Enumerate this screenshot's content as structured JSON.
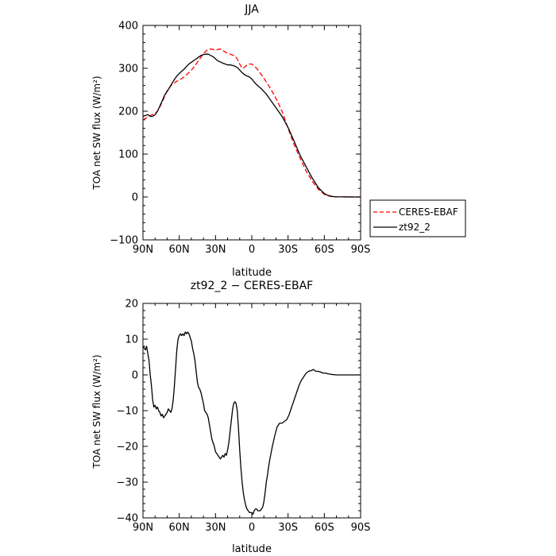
{
  "chart_data": [
    {
      "type": "line",
      "title": "JJA",
      "xlabel": "latitude",
      "ylabel": "TOA net SW flux (W/m²)",
      "xlim": [
        90,
        -90
      ],
      "ylim": [
        -100,
        400
      ],
      "x_ticks": [
        90,
        60,
        30,
        0,
        -30,
        -60,
        -90
      ],
      "x_tick_labels": [
        "90N",
        "60N",
        "30N",
        "0",
        "30S",
        "60S",
        "90S"
      ],
      "y_ticks": [
        -100,
        0,
        100,
        200,
        300,
        400
      ],
      "y_tick_labels": [
        "−100",
        "0",
        "100",
        "200",
        "300",
        "400"
      ],
      "legend_position": "right",
      "series": [
        {
          "name": "CERES-EBAF",
          "color": "#ff0000",
          "dash": "dashed",
          "x": [
            90,
            88,
            86,
            84,
            82,
            80,
            78,
            76,
            74,
            72,
            70,
            68,
            66,
            64,
            62,
            60,
            58,
            56,
            54,
            52,
            50,
            48,
            46,
            44,
            42,
            40,
            38,
            36,
            34,
            32,
            30,
            28,
            26,
            24,
            22,
            20,
            18,
            16,
            14,
            12,
            10,
            8,
            6,
            4,
            2,
            0,
            -2,
            -4,
            -6,
            -8,
            -10,
            -12,
            -15,
            -20,
            -25,
            -30,
            -35,
            -40,
            -45,
            -50,
            -55,
            -60,
            -62,
            -64,
            -66,
            -68,
            -70,
            -75,
            -80,
            -85,
            -90
          ],
          "y": [
            180,
            183,
            187,
            190,
            192,
            195,
            200,
            210,
            222,
            235,
            248,
            256,
            262,
            266,
            270,
            273,
            276,
            280,
            285,
            290,
            296,
            302,
            310,
            318,
            326,
            334,
            340,
            344,
            345,
            344,
            342,
            344,
            345,
            342,
            338,
            335,
            333,
            331,
            329,
            322,
            310,
            300,
            302,
            308,
            310,
            310,
            305,
            300,
            292,
            285,
            277,
            268,
            255,
            230,
            200,
            160,
            122,
            90,
            60,
            37,
            18,
            6,
            4,
            2,
            1,
            0.5,
            0.3,
            0.2,
            0.1,
            0,
            0
          ]
        },
        {
          "name": "zt92_2",
          "color": "#000000",
          "dash": "solid",
          "x": [
            90,
            88,
            86,
            84,
            82,
            80,
            78,
            76,
            74,
            72,
            70,
            68,
            66,
            64,
            62,
            60,
            58,
            56,
            54,
            52,
            50,
            48,
            46,
            44,
            42,
            40,
            38,
            36,
            34,
            32,
            30,
            28,
            26,
            24,
            22,
            20,
            18,
            16,
            14,
            12,
            10,
            8,
            6,
            4,
            2,
            0,
            -2,
            -4,
            -6,
            -8,
            -10,
            -12,
            -15,
            -20,
            -25,
            -30,
            -35,
            -40,
            -45,
            -50,
            -55,
            -60,
            -62,
            -64,
            -66,
            -68,
            -70,
            -75,
            -80,
            -85,
            -90
          ],
          "y": [
            188,
            190,
            192,
            188,
            188,
            192,
            200,
            212,
            225,
            238,
            246,
            255,
            265,
            274,
            282,
            288,
            293,
            298,
            304,
            310,
            314,
            318,
            322,
            326,
            330,
            332,
            333,
            333,
            330,
            327,
            322,
            317,
            315,
            312,
            310,
            308,
            308,
            307,
            305,
            302,
            296,
            290,
            285,
            282,
            280,
            275,
            268,
            262,
            257,
            252,
            246,
            240,
            228,
            208,
            188,
            162,
            130,
            97,
            70,
            44,
            22,
            8,
            5,
            3,
            1.5,
            0.8,
            0.4,
            0.2,
            0.1,
            0,
            0
          ]
        }
      ]
    },
    {
      "type": "line",
      "title": "zt92_2 − CERES-EBAF",
      "xlabel": "latitude",
      "ylabel": "TOA net SW flux (W/m²)",
      "xlim": [
        90,
        -90
      ],
      "ylim": [
        -40,
        20
      ],
      "x_ticks": [
        90,
        60,
        30,
        0,
        -30,
        -60,
        -90
      ],
      "x_tick_labels": [
        "90N",
        "60N",
        "30N",
        "0",
        "30S",
        "60S",
        "90S"
      ],
      "y_ticks": [
        -40,
        -30,
        -20,
        -10,
        0,
        10,
        20
      ],
      "y_tick_labels": [
        "−40",
        "−30",
        "−20",
        "−10",
        "0",
        "10",
        "20"
      ],
      "series": [
        {
          "color": "#000000",
          "dash": "solid",
          "x": [
            90,
            89,
            88,
            87,
            86,
            85,
            84,
            83,
            82,
            81,
            80,
            79,
            78,
            77,
            76,
            75,
            74,
            73,
            72,
            71,
            70,
            69,
            68,
            67,
            66,
            65,
            64,
            63,
            62,
            61,
            60,
            59,
            58,
            57,
            56,
            55,
            54,
            53,
            52,
            51,
            50,
            49,
            48,
            47,
            46,
            45,
            44,
            43,
            42,
            41,
            40,
            39,
            38,
            37,
            36,
            35,
            34,
            33,
            32,
            31,
            30,
            29,
            28,
            27,
            26,
            25,
            24,
            23,
            22,
            21,
            20,
            19,
            18,
            17,
            16,
            15,
            14,
            13,
            12,
            11,
            10,
            9,
            8,
            7,
            6,
            5,
            4,
            3,
            2,
            1,
            0,
            -1,
            -2,
            -3,
            -4,
            -5,
            -6,
            -7,
            -8,
            -9,
            -10,
            -11,
            -12,
            -13,
            -14,
            -15,
            -17,
            -19,
            -21,
            -23,
            -25,
            -27,
            -29,
            -31,
            -33,
            -35,
            -37,
            -39,
            -41,
            -43,
            -45,
            -47,
            -49,
            -51,
            -53,
            -55,
            -57,
            -59,
            -61,
            -63,
            -65,
            -67,
            -70,
            -73,
            -76,
            -80,
            -85,
            -90
          ],
          "y": [
            8,
            7.5,
            7,
            8,
            6,
            4,
            0,
            -3,
            -7,
            -9,
            -8.5,
            -9.5,
            -9,
            -10,
            -10.5,
            -11.5,
            -11,
            -12,
            -11.5,
            -11,
            -10.5,
            -9.5,
            -10,
            -10.5,
            -9.5,
            -7,
            -3,
            2,
            7,
            10,
            11,
            11.5,
            11,
            11.5,
            11,
            12,
            11.5,
            12,
            11.5,
            10.5,
            9.5,
            7.5,
            6,
            4,
            1,
            -2,
            -3.5,
            -4,
            -5,
            -6.5,
            -8,
            -10,
            -10.5,
            -11,
            -12,
            -14,
            -16,
            -18,
            -19,
            -20,
            -21.5,
            -22,
            -22.5,
            -23,
            -23.5,
            -23,
            -22.5,
            -23,
            -22,
            -22.5,
            -21,
            -19,
            -16,
            -13,
            -10,
            -8,
            -7.5,
            -8,
            -10,
            -15,
            -21,
            -26,
            -30,
            -33,
            -35,
            -36.5,
            -37.5,
            -38,
            -38.5,
            -38.5,
            -38.5,
            -39,
            -38,
            -37.5,
            -37.5,
            -38,
            -38,
            -38,
            -37.5,
            -37,
            -35.5,
            -33,
            -30,
            -28,
            -25.5,
            -23.5,
            -20,
            -17,
            -14.5,
            -13.5,
            -13.5,
            -13,
            -12.5,
            -11,
            -9,
            -7,
            -5,
            -3,
            -1.5,
            -0.5,
            0.5,
            1,
            1.2,
            1.5,
            1,
            1,
            0.8,
            0.5,
            0.5,
            0.3,
            0.2,
            0.1,
            0,
            0,
            0,
            0,
            0,
            0
          ]
        }
      ]
    }
  ]
}
